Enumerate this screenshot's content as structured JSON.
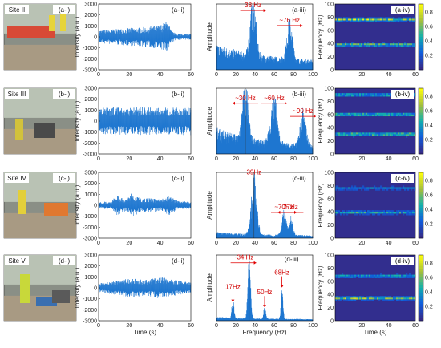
{
  "chart_data": {
    "type": "figure-grid",
    "colors": {
      "signal": "#1f77d0",
      "annotation": "#e00000",
      "frame": "#000000"
    },
    "colorbar": {
      "ticks": [
        "0.8",
        "0.6",
        "0.4",
        "0.2"
      ],
      "colormap": "parula"
    },
    "rows": [
      {
        "photo": {
          "label": "(a-i)",
          "site": "Site II",
          "scene": "roadwork"
        },
        "time": {
          "label": "(a-ii)",
          "ylim": [
            -3000,
            3000
          ],
          "xlim": [
            0,
            60
          ],
          "yticks": [
            "3000",
            "2000",
            "1000",
            "0",
            "-1000",
            "-2000",
            "-3000"
          ],
          "xticks": [
            "0",
            "20",
            "40",
            "60"
          ],
          "envelope": [
            [
              0,
              600
            ],
            [
              10,
              700
            ],
            [
              20,
              800
            ],
            [
              30,
              900
            ],
            [
              40,
              1100
            ],
            [
              45,
              1500
            ],
            [
              47,
              600
            ],
            [
              50,
              300
            ],
            [
              60,
              250
            ]
          ],
          "ylabel": "Intensity (a.u.)"
        },
        "fft": {
          "label": "(a-iii)",
          "xlim": [
            0,
            100
          ],
          "xticks": [
            "0",
            "20",
            "40",
            "60",
            "80",
            "100"
          ],
          "ylabel": "Amplitude",
          "guide": 38,
          "peaks": [
            [
              38,
              0.92,
              4
            ],
            [
              76,
              0.62,
              4
            ]
          ],
          "base": 0.28,
          "decay": 0.12,
          "annotations": [
            {
              "text": "38 Hz",
              "x": 38,
              "y": 0.95,
              "arrow": "right"
            },
            {
              "text": "~76 Hz",
              "x": 76,
              "y": 0.72,
              "arrow": "right"
            }
          ]
        },
        "spec": {
          "label": "(a-iv)",
          "ylabel": "Frequency (Hz)",
          "yticks": [
            "0",
            "20",
            "40",
            "60",
            "80",
            "100"
          ],
          "xticks": [
            "20",
            "40",
            "60"
          ],
          "bands": [
            [
              76,
              0.9
            ],
            [
              38,
              0.7
            ]
          ]
        }
      },
      {
        "photo": {
          "label": "(b-i)",
          "site": "Site III",
          "scene": "compactor"
        },
        "time": {
          "label": "(b-ii)",
          "ylim": [
            -3000,
            3000
          ],
          "xlim": [
            0,
            60
          ],
          "yticks": [
            "3000",
            "2000",
            "1000",
            "0",
            "-1000",
            "-2000",
            "-3000"
          ],
          "xticks": [
            "0",
            "20",
            "40",
            "60"
          ],
          "envelope": [
            [
              0,
              1300
            ],
            [
              20,
              1300
            ],
            [
              40,
              1200
            ],
            [
              60,
              1300
            ]
          ],
          "ylabel": "Intensity (a.u.)"
        },
        "fft": {
          "label": "(b-iii)",
          "xlim": [
            0,
            100
          ],
          "xticks": [
            "0",
            "20",
            "40",
            "60",
            "80",
            "100"
          ],
          "ylabel": "Amplitude",
          "guide": 30,
          "peaks": [
            [
              30,
              0.88,
              4
            ],
            [
              60,
              0.7,
              5
            ],
            [
              90,
              0.55,
              4
            ]
          ],
          "base": 0.3,
          "decay": 0.1,
          "annotations": [
            {
              "text": "~30 Hz",
              "x": 30,
              "y": 0.82,
              "arrow": "left"
            },
            {
              "text": "~60 Hz",
              "x": 60,
              "y": 0.82,
              "arrow": "right"
            },
            {
              "text": "~90 Hz",
              "x": 90,
              "y": 0.62,
              "arrow": "right"
            }
          ]
        },
        "spec": {
          "label": "(b-iv)",
          "ylabel": "Frequency (Hz)",
          "yticks": [
            "0",
            "20",
            "40",
            "60",
            "80",
            "100"
          ],
          "xticks": [
            "20",
            "40",
            "60"
          ],
          "bands": [
            [
              90,
              0.6
            ],
            [
              60,
              0.7
            ],
            [
              30,
              0.75
            ]
          ]
        }
      },
      {
        "photo": {
          "label": "(c-i)",
          "site": "Site IV",
          "scene": "saw"
        },
        "time": {
          "label": "(c-ii)",
          "ylim": [
            -3000,
            3000
          ],
          "xlim": [
            0,
            60
          ],
          "yticks": [
            "3000",
            "2000",
            "1000",
            "0",
            "-1000",
            "-2000",
            "-3000"
          ],
          "xticks": [
            "0",
            "20",
            "40",
            "60"
          ],
          "envelope": [
            [
              0,
              300
            ],
            [
              8,
              350
            ],
            [
              12,
              900
            ],
            [
              18,
              500
            ],
            [
              22,
              1100
            ],
            [
              28,
              600
            ],
            [
              34,
              700
            ],
            [
              40,
              500
            ],
            [
              46,
              900
            ],
            [
              52,
              400
            ],
            [
              60,
              300
            ]
          ],
          "ylabel": "Intensity (a.u.)"
        },
        "fft": {
          "label": "(c-iii)",
          "xlim": [
            0,
            100
          ],
          "xticks": [
            "0",
            "20",
            "40",
            "60",
            "80",
            "100"
          ],
          "ylabel": "Amplitude",
          "guide": 39,
          "peaks": [
            [
              39,
              0.95,
              4
            ],
            [
              70,
              0.38,
              3
            ],
            [
              77,
              0.3,
              3
            ]
          ],
          "base": 0.05,
          "decay": 0.04,
          "annotations": [
            {
              "text": "39Hz",
              "x": 39,
              "y": 0.97,
              "arrow": "none"
            },
            {
              "text": "~70Hz",
              "x": 70,
              "y": 0.44,
              "arrow": "right"
            },
            {
              "text": "77Hz",
              "x": 77,
              "y": 0.44,
              "arrow": "left"
            }
          ]
        },
        "spec": {
          "label": "(c-iv)",
          "ylabel": "Frequency (Hz)",
          "yticks": [
            "0",
            "20",
            "40",
            "60",
            "80",
            "100"
          ],
          "xticks": [
            "20",
            "40",
            "60"
          ],
          "bands": [
            [
              39,
              0.55
            ],
            [
              76,
              0.35
            ]
          ]
        }
      },
      {
        "photo": {
          "label": "(d-i)",
          "site": "Site V",
          "scene": "plate"
        },
        "time": {
          "label": "(d-ii)",
          "ylim": [
            -3000,
            3000
          ],
          "xlim": [
            0,
            60
          ],
          "yticks": [
            "3000",
            "2000",
            "1000",
            "0",
            "-1000",
            "-2000",
            "-3000"
          ],
          "xticks": [
            "0",
            "20",
            "40",
            "60"
          ],
          "envelope": [
            [
              0,
              400
            ],
            [
              10,
              600
            ],
            [
              20,
              900
            ],
            [
              30,
              700
            ],
            [
              40,
              1000
            ],
            [
              50,
              700
            ],
            [
              60,
              500
            ]
          ],
          "ylabel": "Intensity (a.u.)",
          "xlabel": "Time (s)"
        },
        "fft": {
          "label": "(d-iii)",
          "xlim": [
            0,
            100
          ],
          "xticks": [
            "0",
            "20",
            "40",
            "60",
            "80",
            "100"
          ],
          "ylabel": "Amplitude",
          "xlabel": "Frequency (Hz)",
          "guide": 34,
          "peaks": [
            [
              17,
              0.3,
              1.5
            ],
            [
              34,
              0.95,
              2
            ],
            [
              50,
              0.2,
              1.5
            ],
            [
              68,
              0.5,
              1.5
            ]
          ],
          "base": 0.04,
          "decay": 0.02,
          "annotations": [
            {
              "text": "~34 Hz",
              "x": 28,
              "y": 0.93,
              "arrow": "right"
            },
            {
              "text": "17Hz",
              "x": 17,
              "y": 0.48,
              "arrow": "down"
            },
            {
              "text": "50Hz",
              "x": 50,
              "y": 0.4,
              "arrow": "down"
            },
            {
              "text": "68Hz",
              "x": 68,
              "y": 0.7,
              "arrow": "down"
            },
            {
              "text": "(d-iii)",
              "x": 78,
              "y": 0.9,
              "arrow": "none"
            }
          ]
        },
        "spec": {
          "label": "(d-iv)",
          "ylabel": "Frequency (Hz)",
          "xlabel": "Time (s)",
          "yticks": [
            "0",
            "20",
            "40",
            "60",
            "80",
            "100"
          ],
          "xticks": [
            "20",
            "40",
            "60"
          ],
          "bands": [
            [
              34,
              0.8
            ],
            [
              68,
              0.5
            ]
          ]
        }
      }
    ]
  }
}
